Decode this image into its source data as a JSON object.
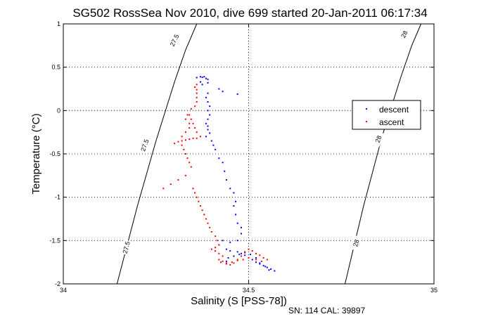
{
  "chart_data": {
    "type": "scatter",
    "title": "SG502 RossSea Nov 2010, dive 699 started 20-Jan-2011 06:17:34",
    "xlabel": "Salinity (S [PSS-78])",
    "ylabel": "Temperature (°C)",
    "xlim": [
      34,
      35
    ],
    "ylim": [
      -2,
      1
    ],
    "x_ticks": [
      "34",
      "34.5",
      "35"
    ],
    "y_ticks": [
      "-2",
      "-1.5",
      "-1",
      "-0.5",
      "0",
      "0.5",
      "1"
    ],
    "grid": true,
    "legend_position": "right",
    "footer": "SN: 114  CAL: 39897",
    "density_contours": [
      {
        "label": "27.5",
        "points": [
          [
            34.145,
            -2.0
          ],
          [
            34.2,
            -1.1
          ],
          [
            34.25,
            -0.35
          ],
          [
            34.3,
            0.33
          ],
          [
            34.33,
            0.7
          ],
          [
            34.36,
            1.0
          ]
        ]
      },
      {
        "label": "28",
        "points": [
          [
            34.76,
            -2.0
          ],
          [
            34.81,
            -1.1
          ],
          [
            34.86,
            -0.3
          ],
          [
            34.91,
            0.38
          ],
          [
            34.94,
            0.75
          ],
          [
            34.965,
            1.0
          ]
        ]
      }
    ],
    "contour_label_points": [
      {
        "label": "27.5",
        "x": 34.3,
        "y": 0.81,
        "angle": -64
      },
      {
        "label": "27.5",
        "x": 34.22,
        "y": -0.4,
        "angle": -70
      },
      {
        "label": "27.5",
        "x": 34.17,
        "y": -1.58,
        "angle": -75
      },
      {
        "label": "28",
        "x": 34.92,
        "y": 0.88,
        "angle": -63
      },
      {
        "label": "28",
        "x": 34.85,
        "y": -0.33,
        "angle": -70
      },
      {
        "label": "28",
        "x": 34.79,
        "y": -1.53,
        "angle": -75
      }
    ],
    "series": [
      {
        "name": "descent",
        "color": "#0000ff",
        "points": [
          [
            34.36,
            0.38
          ],
          [
            34.37,
            0.39
          ],
          [
            34.375,
            0.385
          ],
          [
            34.38,
            0.39
          ],
          [
            34.385,
            0.37
          ],
          [
            34.39,
            0.36
          ],
          [
            34.37,
            0.33
          ],
          [
            34.375,
            0.3
          ],
          [
            34.39,
            0.32
          ],
          [
            34.42,
            0.25
          ],
          [
            34.43,
            0.22
          ],
          [
            34.47,
            0.19
          ],
          [
            34.39,
            0.2
          ],
          [
            34.385,
            0.15
          ],
          [
            34.39,
            0.1
          ],
          [
            34.395,
            0.05
          ],
          [
            34.39,
            0.0
          ],
          [
            34.395,
            -0.05
          ],
          [
            34.39,
            -0.1
          ],
          [
            34.385,
            -0.15
          ],
          [
            34.39,
            -0.18
          ],
          [
            34.39,
            -0.22
          ],
          [
            34.395,
            -0.26
          ],
          [
            34.385,
            -0.3
          ],
          [
            34.4,
            -0.35
          ],
          [
            34.405,
            -0.4
          ],
          [
            34.41,
            -0.45
          ],
          [
            34.42,
            -0.55
          ],
          [
            34.43,
            -0.6
          ],
          [
            34.435,
            -0.7
          ],
          [
            34.44,
            -0.8
          ],
          [
            34.45,
            -0.9
          ],
          [
            34.46,
            -0.95
          ],
          [
            34.465,
            -1.05
          ],
          [
            34.46,
            -1.1
          ],
          [
            34.465,
            -1.2
          ],
          [
            34.47,
            -1.3
          ],
          [
            34.48,
            -1.35
          ],
          [
            34.48,
            -1.42
          ],
          [
            34.47,
            -1.5
          ],
          [
            34.45,
            -1.52
          ],
          [
            34.43,
            -1.5
          ],
          [
            34.42,
            -1.55
          ],
          [
            34.44,
            -1.6
          ],
          [
            34.45,
            -1.62
          ],
          [
            34.47,
            -1.63
          ],
          [
            34.48,
            -1.65
          ],
          [
            34.49,
            -1.67
          ],
          [
            34.5,
            -1.7
          ],
          [
            34.51,
            -1.72
          ],
          [
            34.52,
            -1.75
          ],
          [
            34.53,
            -1.77
          ],
          [
            34.54,
            -1.79
          ],
          [
            34.55,
            -1.81
          ],
          [
            34.56,
            -1.83
          ],
          [
            34.57,
            -1.85
          ],
          [
            34.555,
            -1.84
          ],
          [
            34.545,
            -1.8
          ],
          [
            34.53,
            -1.76
          ],
          [
            34.52,
            -1.7
          ],
          [
            34.505,
            -1.66
          ],
          [
            34.49,
            -1.64
          ],
          [
            34.475,
            -1.66
          ],
          [
            34.46,
            -1.68
          ],
          [
            34.445,
            -1.7
          ],
          [
            34.44,
            -1.74
          ]
        ]
      },
      {
        "name": "ascent",
        "color": "#ff0000",
        "points": [
          [
            34.36,
            0.3
          ],
          [
            34.355,
            0.27
          ],
          [
            34.36,
            0.24
          ],
          [
            34.36,
            0.2
          ],
          [
            34.36,
            0.15
          ],
          [
            34.36,
            0.1
          ],
          [
            34.355,
            0.05
          ],
          [
            34.345,
            0.02
          ],
          [
            34.34,
            -0.05
          ],
          [
            34.345,
            -0.1
          ],
          [
            34.35,
            -0.15
          ],
          [
            34.355,
            -0.2
          ],
          [
            34.36,
            -0.25
          ],
          [
            34.37,
            -0.3
          ],
          [
            34.36,
            -0.32
          ],
          [
            34.35,
            -0.32
          ],
          [
            34.34,
            -0.33
          ],
          [
            34.33,
            -0.34
          ],
          [
            34.32,
            -0.35
          ],
          [
            34.31,
            -0.36
          ],
          [
            34.3,
            -0.38
          ],
          [
            34.32,
            -0.3
          ],
          [
            34.33,
            -0.25
          ],
          [
            34.34,
            -0.2
          ],
          [
            34.34,
            -0.15
          ],
          [
            34.33,
            -0.1
          ],
          [
            34.335,
            -0.05
          ],
          [
            34.32,
            -0.4
          ],
          [
            34.325,
            -0.45
          ],
          [
            34.33,
            -0.5
          ],
          [
            34.335,
            -0.55
          ],
          [
            34.34,
            -0.6
          ],
          [
            34.345,
            -0.65
          ],
          [
            34.33,
            -0.75
          ],
          [
            34.31,
            -0.8
          ],
          [
            34.29,
            -0.85
          ],
          [
            34.27,
            -0.9
          ],
          [
            34.35,
            -0.9
          ],
          [
            34.355,
            -0.95
          ],
          [
            34.36,
            -1.0
          ],
          [
            34.365,
            -1.05
          ],
          [
            34.37,
            -1.1
          ],
          [
            34.375,
            -1.15
          ],
          [
            34.38,
            -1.2
          ],
          [
            34.385,
            -1.25
          ],
          [
            34.39,
            -1.3
          ],
          [
            34.395,
            -1.35
          ],
          [
            34.4,
            -1.4
          ],
          [
            34.41,
            -1.45
          ],
          [
            34.415,
            -1.5
          ],
          [
            34.42,
            -1.55
          ],
          [
            34.41,
            -1.58
          ],
          [
            34.4,
            -1.6
          ],
          [
            34.41,
            -1.62
          ],
          [
            34.42,
            -1.65
          ],
          [
            34.43,
            -1.68
          ],
          [
            34.42,
            -1.72
          ],
          [
            34.425,
            -1.75
          ],
          [
            34.44,
            -1.77
          ],
          [
            34.455,
            -1.75
          ],
          [
            34.47,
            -1.72
          ],
          [
            34.48,
            -1.68
          ],
          [
            34.49,
            -1.63
          ],
          [
            34.5,
            -1.6
          ],
          [
            34.51,
            -1.62
          ],
          [
            34.52,
            -1.65
          ],
          [
            34.53,
            -1.67
          ],
          [
            34.54,
            -1.7
          ],
          [
            34.55,
            -1.72
          ],
          [
            34.535,
            -1.74
          ],
          [
            34.52,
            -1.72
          ],
          [
            34.5,
            -1.7
          ],
          [
            34.485,
            -1.72
          ],
          [
            34.47,
            -1.73
          ],
          [
            34.46,
            -1.76
          ],
          [
            34.45,
            -1.78
          ],
          [
            34.44,
            -1.76
          ],
          [
            34.43,
            -1.74
          ]
        ]
      }
    ]
  }
}
